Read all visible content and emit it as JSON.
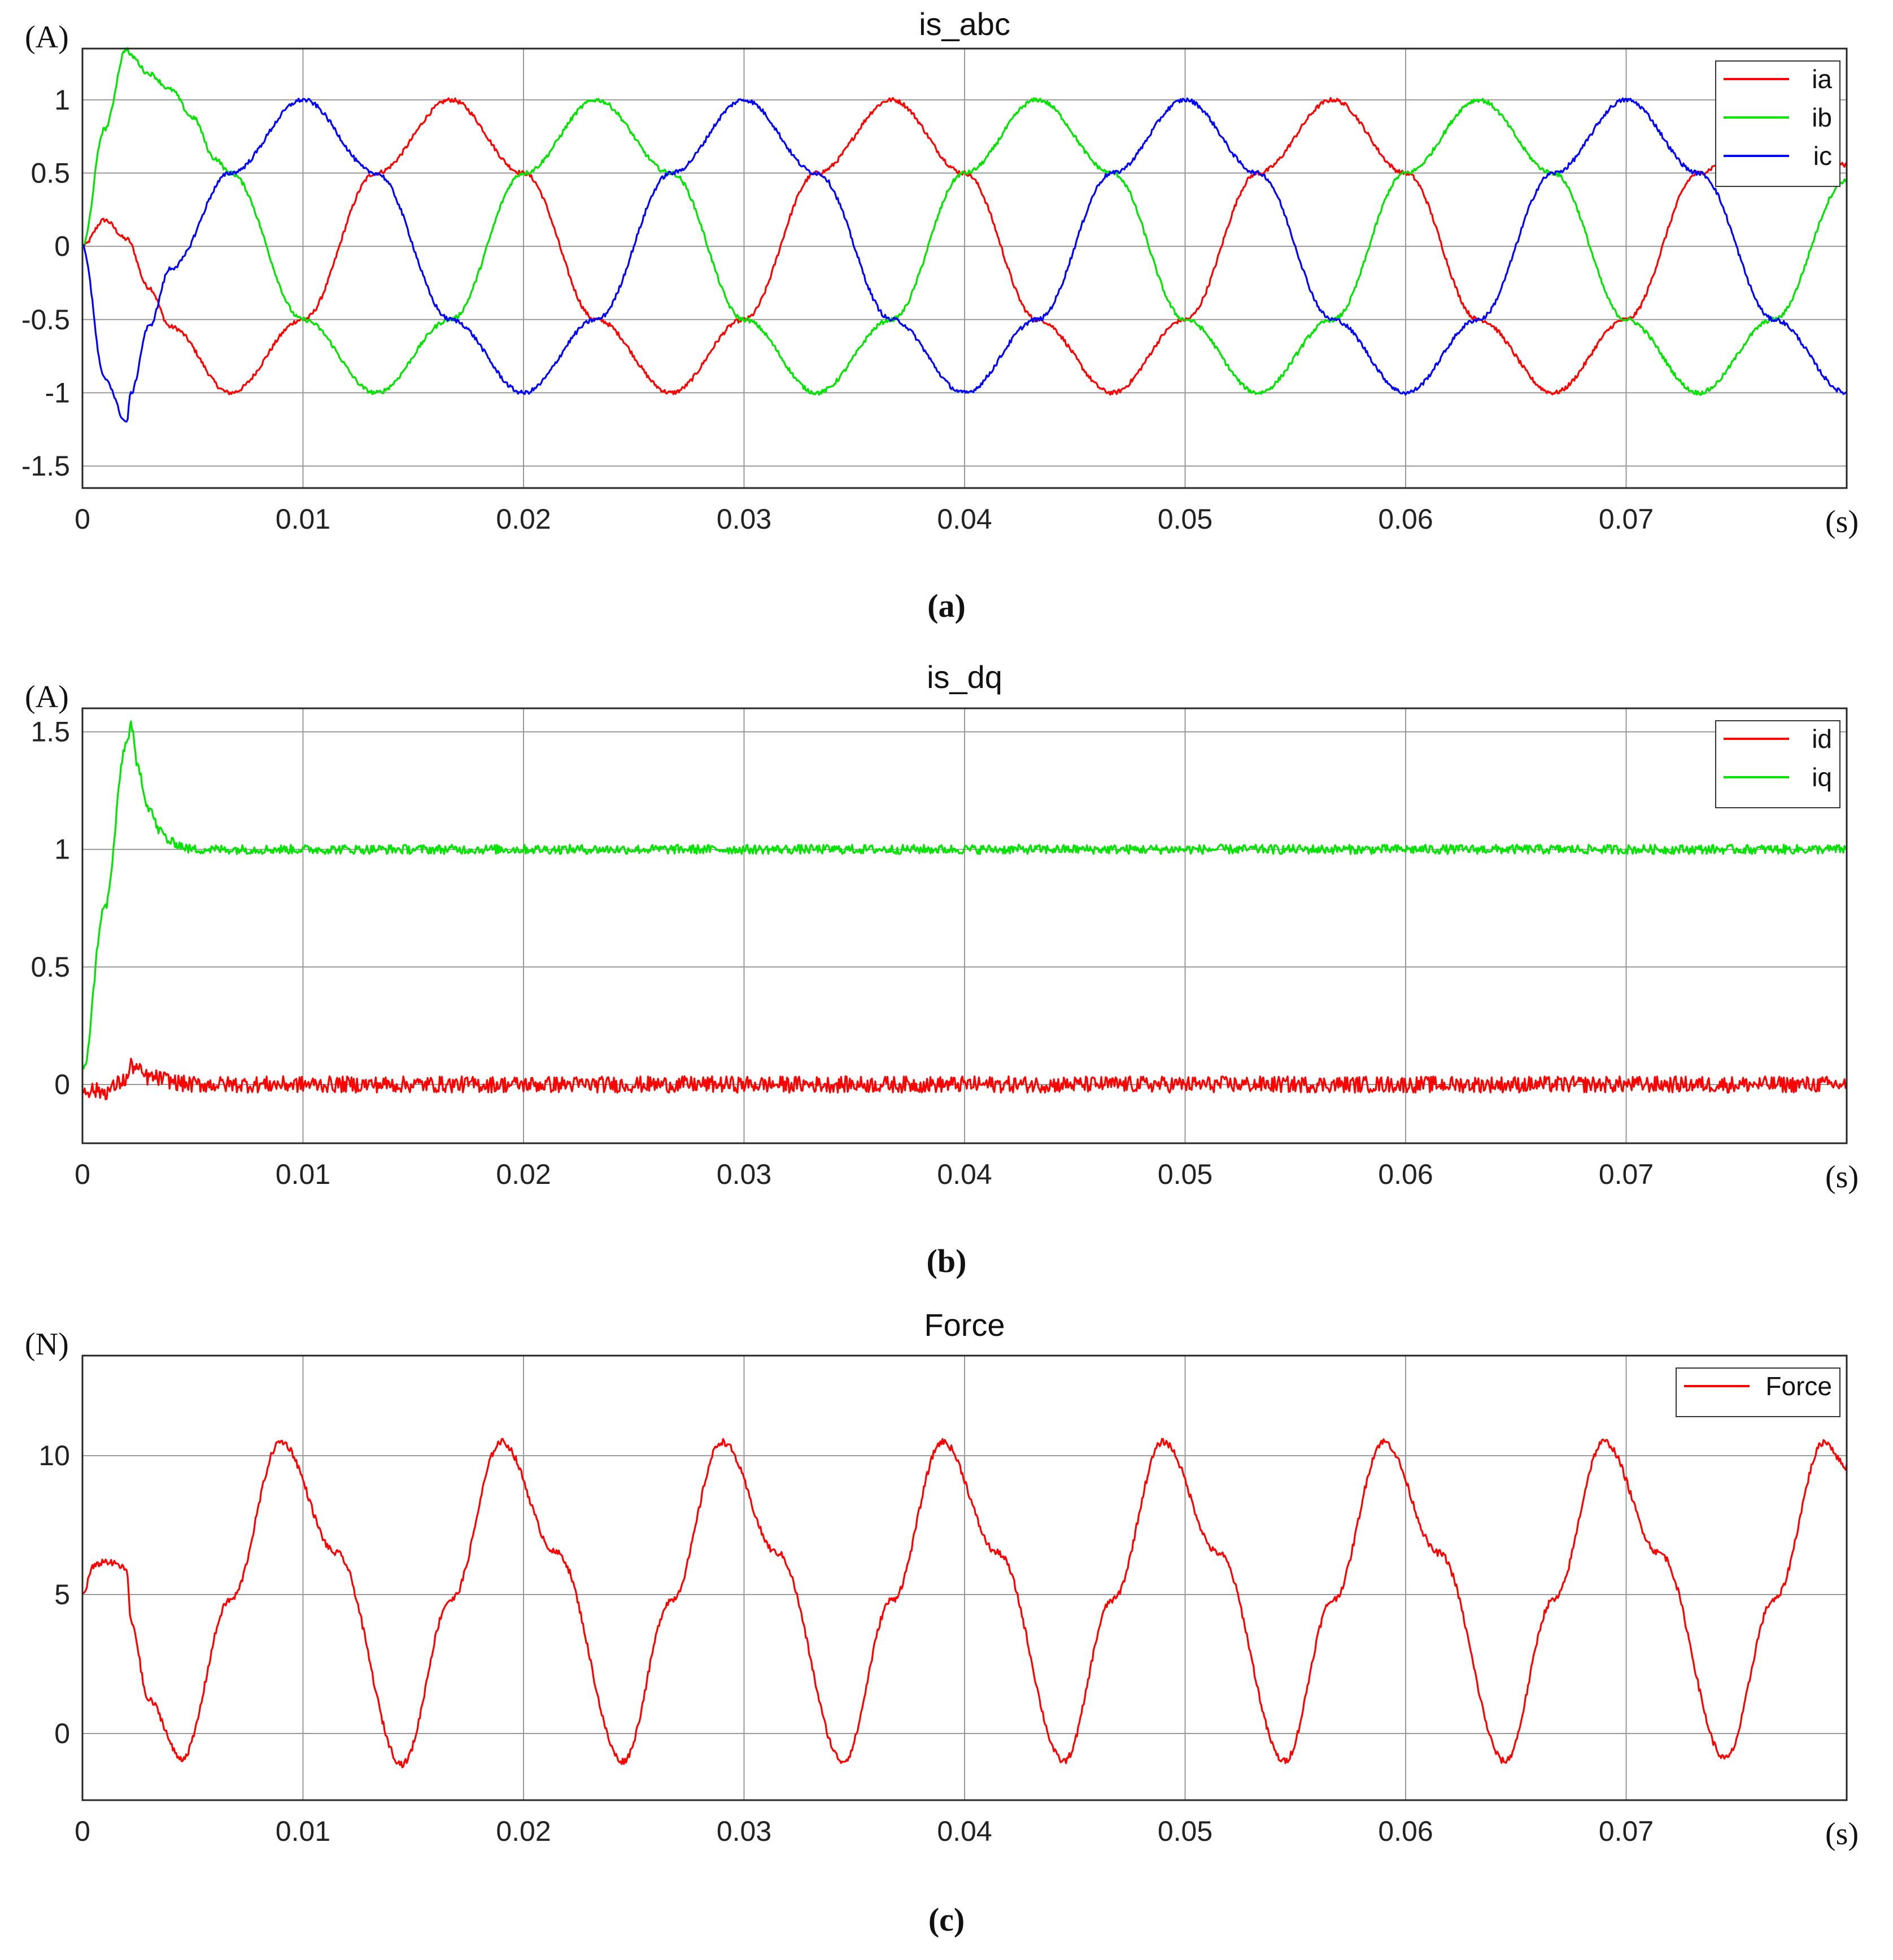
{
  "figure": {
    "panels": [
      {
        "caption": "(a)"
      },
      {
        "caption": "(b)"
      },
      {
        "caption": "(c)"
      }
    ]
  },
  "colors": {
    "red": "#ff0000",
    "green": "#00e400",
    "blue": "#0000ff",
    "grid": "#999999",
    "axis": "#262626"
  },
  "chart_data": [
    {
      "type": "line",
      "title": "is_abc",
      "ylabel": "(A)",
      "xlabel": "(s)",
      "xlim": [
        0,
        0.08
      ],
      "ylim": [
        -1.65,
        1.35
      ],
      "xticks": [
        0,
        0.01,
        0.02,
        0.03,
        0.04,
        0.05,
        0.06,
        0.07
      ],
      "xtick_labels": [
        "0",
        "0.01",
        "0.02",
        "0.03",
        "0.04",
        "0.05",
        "0.06",
        "0.07"
      ],
      "yticks": [
        -1.5,
        -1,
        -0.5,
        0,
        0.5,
        1
      ],
      "ytick_labels": [
        "-1.5",
        "-1",
        "-0.5",
        "0",
        "0.5",
        "1"
      ],
      "grid": true,
      "legend": "top-right",
      "series": [
        {
          "name": "ia",
          "color": "#ff0000",
          "x": [
            0,
            0.001,
            0.002,
            0.003,
            0.004,
            0.0067,
            0.01,
            0.0133,
            0.0167,
            0.02,
            0.0233,
            0.0267,
            0.03,
            0.0333,
            0.0367,
            0.04,
            0.0433,
            0.0467,
            0.05,
            0.0533,
            0.0567,
            0.06,
            0.0633,
            0.0667,
            0.07,
            0.0733,
            0.0767,
            0.0787,
            0.08
          ],
          "y": [
            0,
            0.18,
            0.05,
            -0.28,
            -0.55,
            -1.0,
            -0.5,
            0.5,
            1.0,
            0.5,
            -0.5,
            -1.0,
            -0.5,
            0.5,
            1.0,
            0.5,
            -0.5,
            -1.0,
            -0.5,
            0.5,
            1.0,
            0.5,
            -0.5,
            -1.0,
            -0.5,
            0.5,
            1.0,
            0.72,
            0.55
          ]
        },
        {
          "name": "ib",
          "color": "#00e400",
          "x": [
            0,
            0.001,
            0.002,
            0.0022,
            0.003,
            0.004,
            0.005,
            0.006,
            0.0067,
            0.01,
            0.0133,
            0.0167,
            0.02,
            0.0233,
            0.0267,
            0.03,
            0.0333,
            0.0367,
            0.04,
            0.0433,
            0.0467,
            0.05,
            0.0533,
            0.0567,
            0.06,
            0.0633,
            0.0667,
            0.07,
            0.0733,
            0.0767,
            0.08
          ],
          "y": [
            0,
            0.8,
            1.35,
            1.3,
            1.18,
            1.07,
            0.88,
            0.6,
            0.5,
            -0.5,
            -1.0,
            -0.5,
            0.5,
            1.0,
            0.5,
            -0.5,
            -1.0,
            -0.5,
            0.5,
            1.0,
            0.5,
            -0.5,
            -1.0,
            -0.5,
            0.5,
            1.0,
            0.5,
            -0.5,
            -1.0,
            -0.5,
            0.45
          ]
        },
        {
          "name": "ic",
          "color": "#0000ff",
          "x": [
            0,
            0.001,
            0.002,
            0.0022,
            0.003,
            0.004,
            0.0067,
            0.01,
            0.0133,
            0.0167,
            0.02,
            0.0233,
            0.0267,
            0.03,
            0.0333,
            0.0367,
            0.04,
            0.0433,
            0.0467,
            0.05,
            0.0533,
            0.0567,
            0.06,
            0.0633,
            0.0667,
            0.07,
            0.0733,
            0.0767,
            0.08
          ],
          "y": [
            0,
            -0.9,
            -1.2,
            -1.0,
            -0.55,
            -0.15,
            0.5,
            1.0,
            0.5,
            -0.5,
            -1.0,
            -0.5,
            0.5,
            1.0,
            0.5,
            -0.5,
            -1.0,
            -0.5,
            0.5,
            1.0,
            0.5,
            -0.5,
            -1.0,
            -0.5,
            0.5,
            1.0,
            0.5,
            -0.5,
            -1.0
          ]
        }
      ]
    },
    {
      "type": "line",
      "title": "is_dq",
      "ylabel": "(A)",
      "xlabel": "(s)",
      "xlim": [
        0,
        0.08
      ],
      "ylim": [
        -0.25,
        1.6
      ],
      "xticks": [
        0,
        0.01,
        0.02,
        0.03,
        0.04,
        0.05,
        0.06,
        0.07
      ],
      "xtick_labels": [
        "0",
        "0.01",
        "0.02",
        "0.03",
        "0.04",
        "0.05",
        "0.06",
        "0.07"
      ],
      "yticks": [
        0,
        0.5,
        1,
        1.5
      ],
      "ytick_labels": [
        "0",
        "0.5",
        "1",
        "1.5"
      ],
      "grid": true,
      "legend": "top-right",
      "series": [
        {
          "name": "id",
          "color": "#ff0000",
          "x": [
            0,
            0.001,
            0.002,
            0.0022,
            0.003,
            0.005,
            0.01,
            0.02,
            0.03,
            0.04,
            0.05,
            0.06,
            0.07,
            0.08
          ],
          "y": [
            -0.02,
            -0.03,
            0.02,
            0.08,
            0.03,
            0.0,
            0.0,
            0.0,
            0.0,
            0.0,
            0.0,
            0.0,
            0.0,
            0.0
          ]
        },
        {
          "name": "iq",
          "color": "#00e400",
          "x": [
            0,
            0.001,
            0.002,
            0.0022,
            0.0025,
            0.003,
            0.0035,
            0.004,
            0.005,
            0.01,
            0.02,
            0.03,
            0.04,
            0.05,
            0.06,
            0.07,
            0.08
          ],
          "y": [
            0.05,
            0.75,
            1.45,
            1.53,
            1.35,
            1.18,
            1.08,
            1.03,
            1.0,
            1.0,
            1.0,
            1.0,
            1.0,
            1.0,
            1.0,
            1.0,
            1.0
          ]
        }
      ]
    },
    {
      "type": "line",
      "title": "Force",
      "ylabel": "(N)",
      "xlabel": "(s)",
      "xlim": [
        0,
        0.08
      ],
      "ylim": [
        -2.4,
        13.6
      ],
      "xticks": [
        0,
        0.01,
        0.02,
        0.03,
        0.04,
        0.05,
        0.06,
        0.07
      ],
      "xtick_labels": [
        "0",
        "0.01",
        "0.02",
        "0.03",
        "0.04",
        "0.05",
        "0.06",
        "0.07"
      ],
      "yticks": [
        0,
        5,
        10
      ],
      "ytick_labels": [
        "0",
        "5",
        "10"
      ],
      "grid": true,
      "legend": "top-right",
      "series": [
        {
          "name": "Force",
          "color": "#ff0000",
          "x": [
            0,
            0.0005,
            0.001,
            0.0015,
            0.002,
            0.0022,
            0.003,
            0.0045,
            0.0067,
            0.009,
            0.0115,
            0.0145,
            0.0167,
            0.019,
            0.0215,
            0.0245,
            0.0267,
            0.029,
            0.0315,
            0.0345,
            0.0367,
            0.039,
            0.0415,
            0.0445,
            0.0467,
            0.049,
            0.0515,
            0.0545,
            0.0567,
            0.059,
            0.0615,
            0.0645,
            0.0667,
            0.069,
            0.0715,
            0.0745,
            0.0767,
            0.079,
            0.08
          ],
          "y": [
            5.0,
            6.0,
            6.2,
            6.1,
            5.9,
            4.0,
            1.2,
            -0.9,
            4.8,
            10.5,
            6.5,
            -1.1,
            4.8,
            10.5,
            6.5,
            -1.0,
            4.8,
            10.5,
            6.5,
            -1.0,
            4.8,
            10.5,
            6.5,
            -1.0,
            4.8,
            10.5,
            6.5,
            -1.0,
            4.8,
            10.5,
            6.5,
            -1.0,
            4.8,
            10.5,
            6.5,
            -0.9,
            4.8,
            10.5,
            9.6
          ]
        }
      ]
    }
  ]
}
